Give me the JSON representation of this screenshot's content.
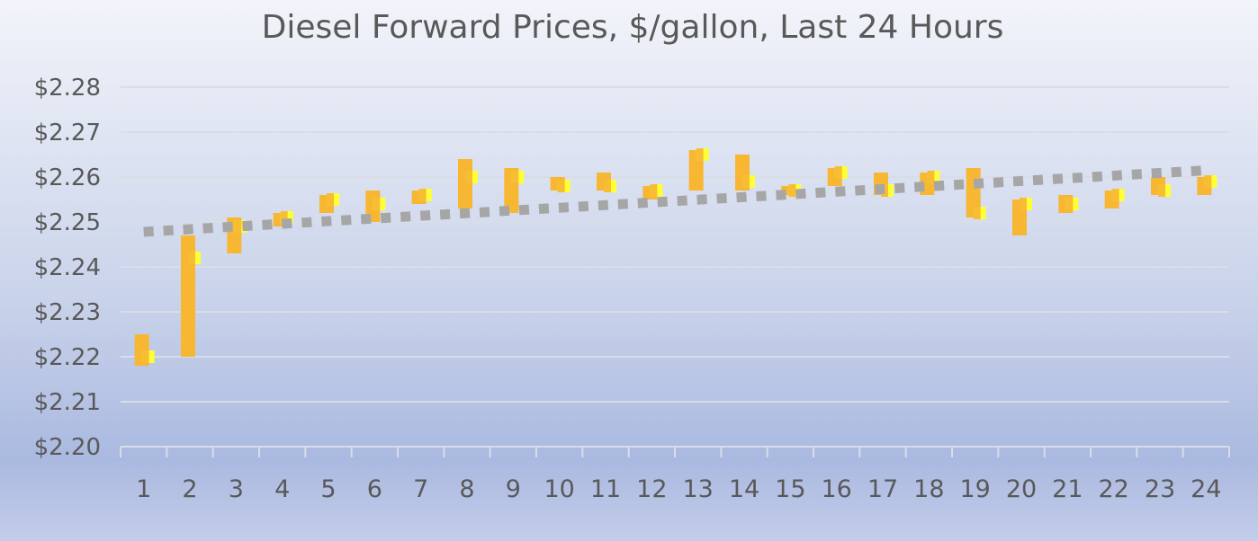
{
  "chart_data": {
    "type": "bar",
    "title": "Diesel Forward Prices, $/gallon, Last 24 Hours",
    "categories": [
      "1",
      "2",
      "3",
      "4",
      "5",
      "6",
      "7",
      "8",
      "9",
      "10",
      "11",
      "12",
      "13",
      "14",
      "15",
      "16",
      "17",
      "18",
      "19",
      "20",
      "21",
      "22",
      "23",
      "24"
    ],
    "y_tick_labels": [
      "$2.20",
      "$2.21",
      "$2.22",
      "$2.23",
      "$2.24",
      "$2.25",
      "$2.26",
      "$2.27",
      "$2.28"
    ],
    "ylim": [
      2.2,
      2.28
    ],
    "grid": true,
    "legend": "none",
    "series": [
      {
        "low": [
          2.218,
          2.22,
          2.243,
          2.249,
          2.252,
          2.25,
          2.254,
          2.253,
          2.252,
          2.257,
          2.257,
          2.255,
          2.257,
          2.257,
          2.256,
          2.258,
          2.256,
          2.256,
          2.251,
          2.247,
          2.252,
          2.253,
          2.256,
          2.256
        ],
        "high": [
          2.225,
          2.247,
          2.251,
          2.252,
          2.256,
          2.257,
          2.257,
          2.264,
          2.262,
          2.26,
          2.261,
          2.258,
          2.266,
          2.265,
          2.258,
          2.262,
          2.261,
          2.261,
          2.262,
          2.255,
          2.256,
          2.257,
          2.26,
          2.26
        ],
        "last": [
          2.22,
          2.242,
          2.249,
          2.251,
          2.255,
          2.254,
          2.256,
          2.26,
          2.26,
          2.258,
          2.258,
          2.257,
          2.265,
          2.259,
          2.257,
          2.261,
          2.257,
          2.26,
          2.252,
          2.254,
          2.254,
          2.256,
          2.257,
          2.259
        ]
      }
    ],
    "trendline": {
      "style": "dotted",
      "start": 2.2478,
      "end": 2.2615
    },
    "colors": {
      "bar": "#f7b733",
      "last_marker": "#ffff33",
      "trend": "#a6a6a6",
      "grid": "#d9dde8",
      "text": "#595959"
    }
  }
}
